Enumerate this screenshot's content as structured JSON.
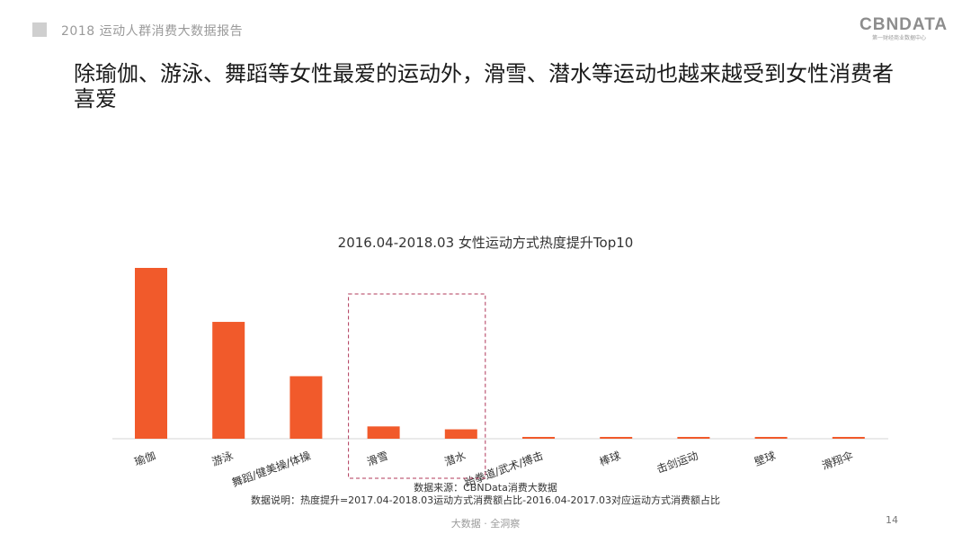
{
  "header": {
    "report_title": "2018 运动人群消费大数据报告",
    "logo_text": "CBNDATA",
    "logo_tagline": "第一财经商业数据中心"
  },
  "slide": {
    "title": "除瑜伽、游泳、舞蹈等女性最爱的运动外，滑雪、潜水等运动也越来越受到女性消费者喜爱"
  },
  "chart_data": {
    "type": "bar",
    "title": "2016.04-2018.03 女性运动方式热度提升Top10",
    "categories": [
      "瑜伽",
      "游泳",
      "舞蹈/健美操/体操",
      "滑雪",
      "潜水",
      "跆拳道/武术/搏击",
      "棒球",
      "击剑运动",
      "壁球",
      "滑翔伞"
    ],
    "values": [
      100,
      68.4,
      36.6,
      7.2,
      5.5,
      0.9,
      0.8,
      0.7,
      0.6,
      0.3
    ],
    "ylim": [
      0,
      100
    ],
    "xlabel": "",
    "ylabel": "",
    "grid": false,
    "bar_color": "#f15a2b",
    "highlight_categories": [
      "滑雪",
      "潜水"
    ],
    "highlight_color": "#b0385a"
  },
  "footnotes": {
    "source": "数据来源：CBNData消费大数据",
    "note": "数据说明：热度提升=2017.04-2018.03运动方式消费额占比-2016.04-2017.03对应运动方式消费额占比"
  },
  "footer": {
    "tagline": "大数据 · 全洞察",
    "page_number": "14"
  }
}
